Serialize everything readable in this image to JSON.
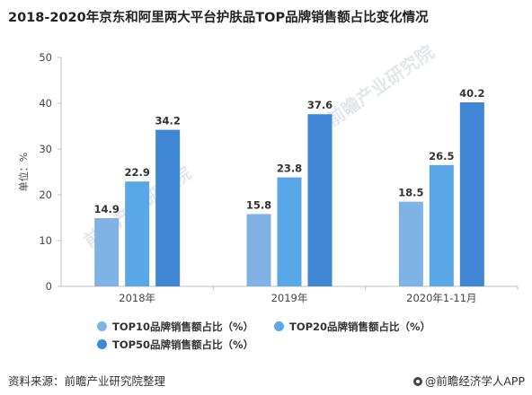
{
  "title": "2018-2020年京东和阿里两大平台护肤品TOP品牌销售额占比变化情况",
  "footer": {
    "source": "资料来源：前瞻产业研究院整理",
    "brand": "@前瞻经济学人APP"
  },
  "watermark_text": "前瞻产业研究院",
  "colors": {
    "top10": "#7fb2e5",
    "top20": "#5aa7e8",
    "top50": "#3f86d4"
  },
  "chart_data": {
    "type": "bar",
    "categories": [
      "2018年",
      "2019年",
      "2020年1-11月"
    ],
    "ylabel": "单位：%",
    "ylim": [
      0,
      50
    ],
    "yticks": [
      0,
      10,
      20,
      30,
      40,
      50
    ],
    "grid": false,
    "legend_position": "bottom",
    "series": [
      {
        "name": "TOP10品牌销售额占比（%）",
        "values": [
          14.9,
          15.8,
          18.5
        ]
      },
      {
        "name": "TOP20品牌销售额占比（%）",
        "values": [
          22.9,
          23.8,
          26.5
        ]
      },
      {
        "name": "TOP50品牌销售额占比（%）",
        "values": [
          34.2,
          37.6,
          40.2
        ]
      }
    ]
  }
}
